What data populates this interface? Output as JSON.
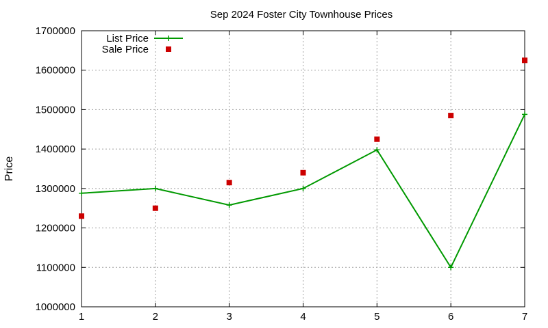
{
  "chart_data": {
    "type": "line",
    "title": "Sep 2024 Foster City Townhouse Prices",
    "xlabel": "",
    "ylabel": "Price",
    "x": [
      1,
      2,
      3,
      4,
      5,
      6,
      7
    ],
    "xlim": [
      1,
      7
    ],
    "ylim": [
      1000000,
      1700000
    ],
    "x_ticks": [
      "1",
      "2",
      "3",
      "4",
      "5",
      "6",
      "7"
    ],
    "y_ticks": [
      "1000000",
      "1100000",
      "1200000",
      "1300000",
      "1400000",
      "1500000",
      "1600000",
      "1700000"
    ],
    "grid": true,
    "legend_position": "top-left",
    "series": [
      {
        "name": "List Price",
        "kind": "line-with-plus-markers",
        "color": "#009900",
        "values": [
          1288000,
          1300000,
          1258000,
          1300000,
          1398000,
          1100000,
          1488000
        ]
      },
      {
        "name": "Sale Price",
        "kind": "square-markers",
        "color": "#cc0000",
        "values": [
          1230000,
          1250000,
          1315000,
          1340000,
          1425000,
          1485000,
          1625000
        ]
      }
    ]
  }
}
